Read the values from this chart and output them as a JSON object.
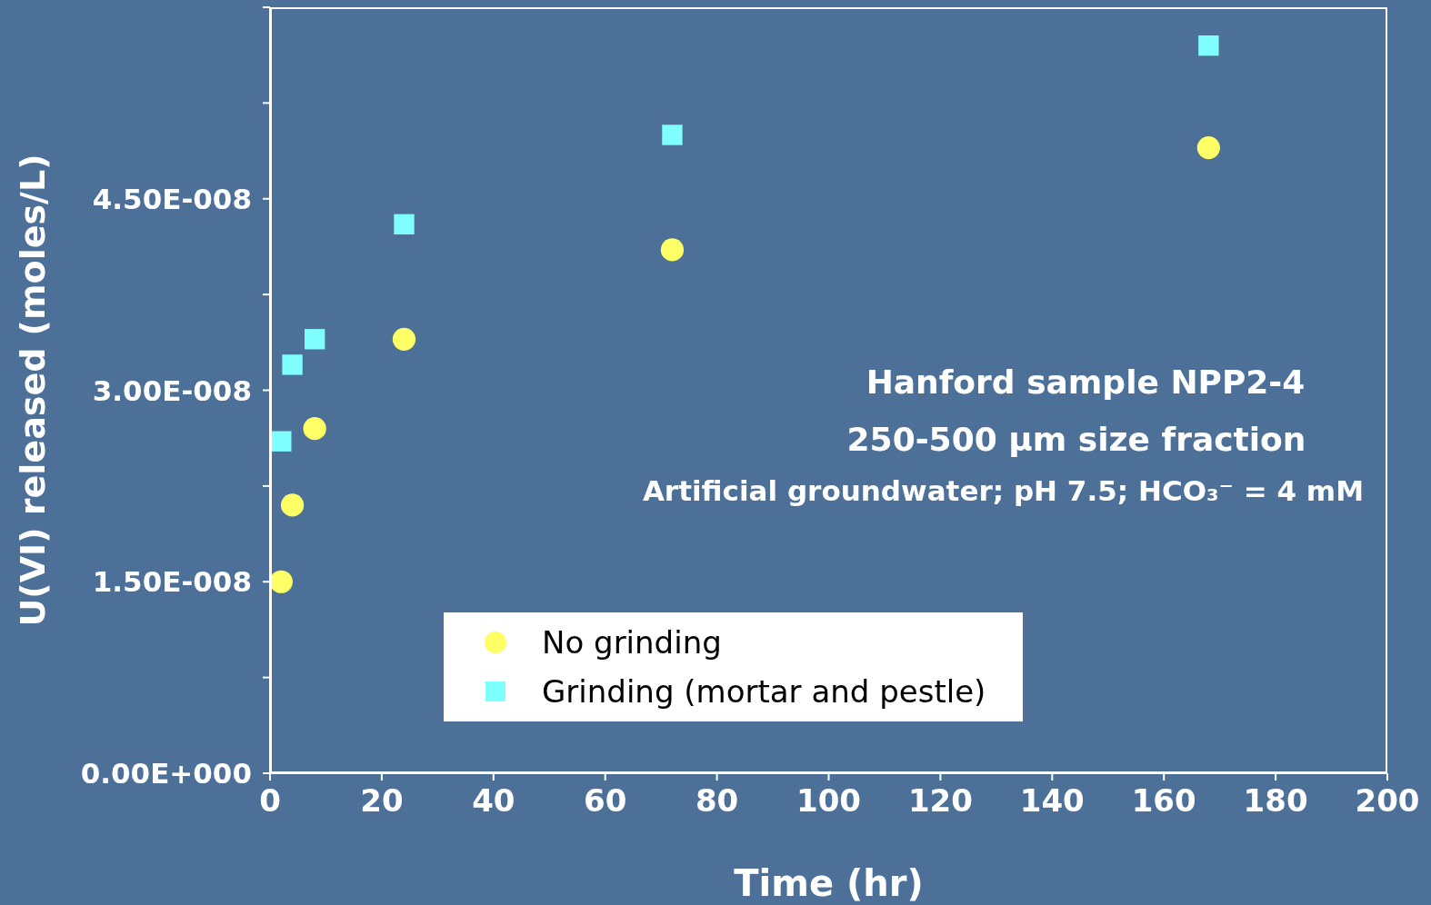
{
  "chart_data": {
    "type": "scatter",
    "xlabel": "Time (hr)",
    "ylabel": "U(VI) released (moles/L)",
    "xlim": [
      0,
      200
    ],
    "xticks": [
      0,
      20,
      40,
      60,
      80,
      100,
      120,
      140,
      160,
      180,
      200
    ],
    "ylim": [
      0,
      6e-08
    ],
    "yticks": [
      {
        "value": 0,
        "label": "0.00E+000"
      },
      {
        "value": 7.5e-09,
        "label": null
      },
      {
        "value": 1.5e-08,
        "label": "1.50E-008"
      },
      {
        "value": 2.25e-08,
        "label": null
      },
      {
        "value": 3e-08,
        "label": "3.00E-008"
      },
      {
        "value": 3.75e-08,
        "label": null
      },
      {
        "value": 4.5e-08,
        "label": "4.50E-008"
      },
      {
        "value": 5.25e-08,
        "label": null
      },
      {
        "value": 6e-08,
        "label": null
      }
    ],
    "grid": false,
    "legend": "bottom",
    "series": [
      {
        "name": "No grinding",
        "color": "#ffff66",
        "marker": "circle",
        "x": [
          2,
          4,
          8,
          24,
          72,
          168
        ],
        "values": [
          1.5e-08,
          2.1e-08,
          2.7e-08,
          3.4e-08,
          4.1e-08,
          4.9e-08
        ]
      },
      {
        "name": "Grinding (mortar and pestle)",
        "color": "#80ffff",
        "marker": "square",
        "x": [
          2,
          4,
          8,
          24,
          72,
          168
        ],
        "values": [
          2.6e-08,
          3.2e-08,
          3.4e-08,
          4.3e-08,
          5e-08,
          5.7e-08
        ]
      }
    ],
    "annotations": [
      "Hanford sample NPP2-4",
      "250-500 μm size fraction",
      "Artificial groundwater; pH 7.5; HCO₃⁻ = 4 mM"
    ]
  }
}
